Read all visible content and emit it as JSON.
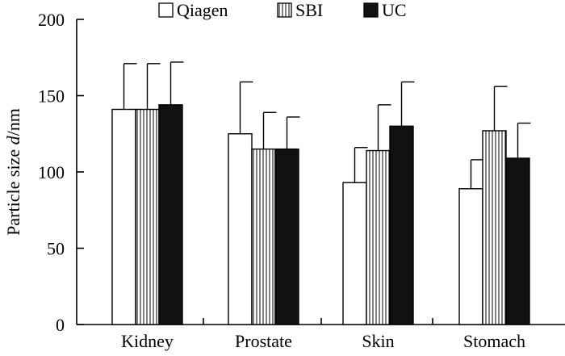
{
  "chart_data": {
    "type": "bar",
    "title": "",
    "xlabel": "",
    "ylabel": {
      "prefix": "Particle size ",
      "italic": "d",
      "suffix": "/nm"
    },
    "ylim": [
      0,
      200
    ],
    "yticks": [
      0,
      50,
      100,
      150,
      200
    ],
    "categories": [
      "Kidney",
      "Prostate",
      "Skin",
      "Stomach"
    ],
    "series": [
      {
        "name": "Qiagen",
        "fill": "open",
        "values": [
          141,
          125,
          93,
          89
        ],
        "errors": [
          30,
          34,
          23,
          19
        ]
      },
      {
        "name": "SBI",
        "fill": "hatched",
        "values": [
          141,
          115,
          114,
          127
        ],
        "errors": [
          30,
          24,
          30,
          29
        ]
      },
      {
        "name": "UC",
        "fill": "solid",
        "values": [
          144,
          115,
          130,
          109
        ],
        "errors": [
          28,
          21,
          29,
          23
        ]
      }
    ],
    "legend": "top-center",
    "grid": false
  },
  "colors": {
    "stroke": "#000000",
    "solid": "#111111",
    "open": "#ffffff"
  }
}
